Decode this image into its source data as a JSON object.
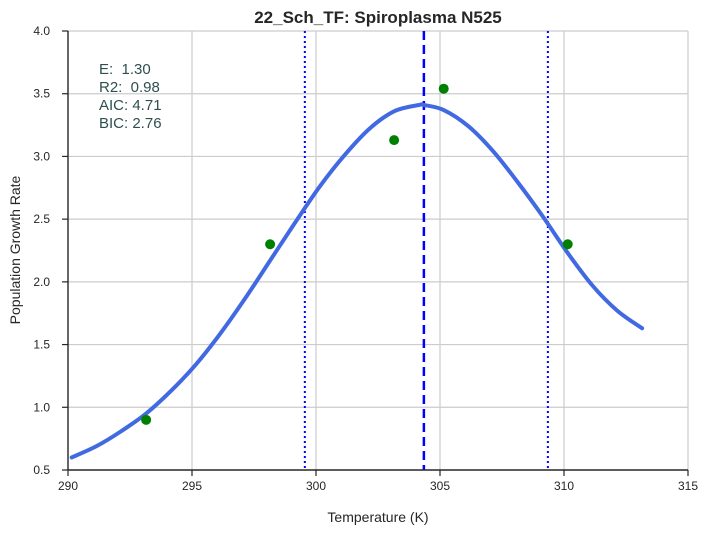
{
  "chart_data": {
    "type": "line",
    "title": "22_Sch_TF: Spiroplasma N525",
    "xlabel": "Temperature (K)",
    "ylabel": "Population Growth Rate",
    "xlim": [
      290,
      315
    ],
    "ylim": [
      0.5,
      4.0
    ],
    "xticks": [
      290,
      295,
      300,
      305,
      310,
      315
    ],
    "xtick_labels": [
      "290",
      "295",
      "300",
      "305",
      "310",
      "315"
    ],
    "yticks": [
      0.5,
      1.0,
      1.5,
      2.0,
      2.5,
      3.0,
      3.5,
      4.0
    ],
    "ytick_labels": [
      "0.5",
      "1.0",
      "1.5",
      "2.0",
      "2.5",
      "3.0",
      "3.5",
      "4.0"
    ],
    "grid": true,
    "fit_curve": {
      "x": [
        290.15,
        291.15,
        292.15,
        293.15,
        294.15,
        295.15,
        296.15,
        297.15,
        298.15,
        299.15,
        300.15,
        301.15,
        302.15,
        303.15,
        304.15,
        304.35,
        305.15,
        306.15,
        307.15,
        308.15,
        309.15,
        310.15,
        311.15,
        312.15,
        313.15
      ],
      "y": [
        0.6,
        0.69,
        0.81,
        0.95,
        1.13,
        1.34,
        1.59,
        1.87,
        2.17,
        2.47,
        2.76,
        3.01,
        3.22,
        3.36,
        3.41,
        3.41,
        3.37,
        3.24,
        3.04,
        2.79,
        2.52,
        2.23,
        1.97,
        1.77,
        1.63
      ],
      "color": "#4169e1"
    },
    "observed_points": {
      "x": [
        293.15,
        298.15,
        303.15,
        305.15,
        310.15
      ],
      "y": [
        0.9,
        2.3,
        3.13,
        3.54,
        2.3
      ],
      "color": "#008000"
    },
    "peak_line": {
      "x": 304.35,
      "color": "#0000ff",
      "style": "dashed"
    },
    "bound_lines": {
      "x": [
        299.55,
        309.35
      ],
      "color": "#0000ff",
      "style": "dotted"
    },
    "stats": [
      "E:  1.30",
      "R2:  0.98",
      "AIC: 4.71",
      "BIC: 2.76"
    ]
  }
}
